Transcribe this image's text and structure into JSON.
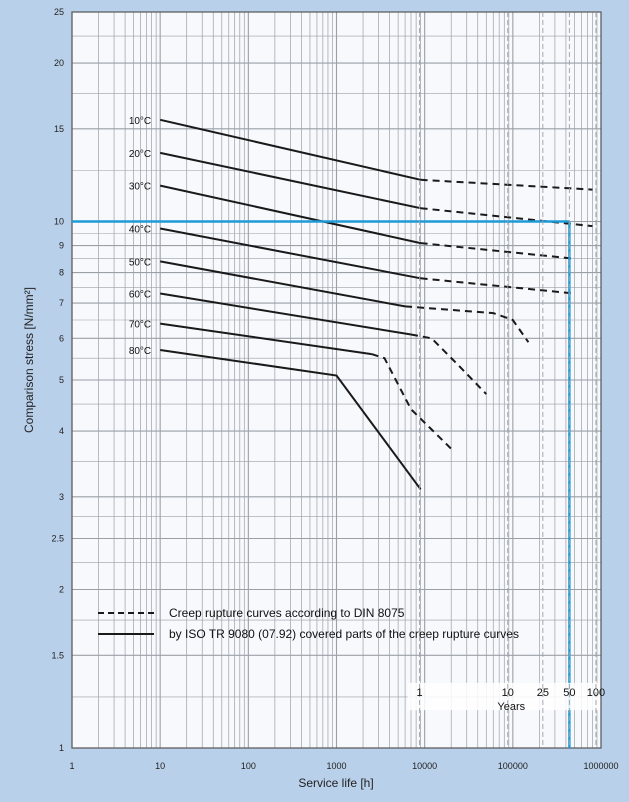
{
  "chart_data": {
    "type": "line",
    "xlabel": "Service life [h]",
    "ylabel": "Comparison stress [N/mm²]",
    "x_scale": "log",
    "y_scale": "log",
    "xlim": [
      1,
      1000000
    ],
    "ylim": [
      1,
      25
    ],
    "x_ticks": [
      1,
      10,
      100,
      1000,
      10000,
      100000,
      1000000
    ],
    "x_tick_labels": [
      "1",
      "10",
      "100",
      "1000",
      "10000",
      "100000",
      "1000000"
    ],
    "y_ticks": [
      1,
      1.5,
      2,
      2.5,
      3,
      4,
      5,
      6,
      7,
      8,
      9,
      10,
      15,
      20,
      25
    ],
    "y_tick_labels": [
      "1",
      "1.5",
      "2",
      "2.5",
      "3",
      "4",
      "5",
      "6",
      "7",
      "8",
      "9",
      "10",
      "15",
      "20",
      "25"
    ],
    "grid": true,
    "series": [
      {
        "name": "10°C",
        "solid": [
          [
            10,
            15.6
          ],
          [
            9000,
            12.0
          ]
        ],
        "dashed": [
          [
            9000,
            12.0
          ],
          [
            800000,
            11.5
          ]
        ]
      },
      {
        "name": "20°C",
        "solid": [
          [
            10,
            13.5
          ],
          [
            9000,
            10.6
          ]
        ],
        "dashed": [
          [
            9000,
            10.6
          ],
          [
            800000,
            9.8
          ]
        ]
      },
      {
        "name": "30°C",
        "solid": [
          [
            10,
            11.7
          ],
          [
            9000,
            9.1
          ]
        ],
        "dashed": [
          [
            9000,
            9.1
          ],
          [
            500000,
            8.5
          ]
        ]
      },
      {
        "name": "40°C",
        "solid": [
          [
            10,
            9.7
          ],
          [
            9000,
            7.8
          ]
        ],
        "dashed": [
          [
            9000,
            7.8
          ],
          [
            500000,
            7.3
          ]
        ]
      },
      {
        "name": "50°C",
        "solid": [
          [
            10,
            8.4
          ],
          [
            6000,
            6.9
          ]
        ],
        "dashed": [
          [
            6000,
            6.9
          ],
          [
            60000,
            6.7
          ],
          [
            100000,
            6.5
          ],
          [
            150000,
            5.9
          ]
        ]
      },
      {
        "name": "60°C",
        "solid": [
          [
            10,
            7.3
          ],
          [
            7000,
            6.1
          ]
        ],
        "dashed": [
          [
            7000,
            6.1
          ],
          [
            12000,
            6.0
          ],
          [
            25000,
            5.3
          ],
          [
            50000,
            4.7
          ]
        ]
      },
      {
        "name": "70°C",
        "solid": [
          [
            10,
            6.4
          ],
          [
            2500,
            5.6
          ]
        ],
        "dashed": [
          [
            2500,
            5.6
          ],
          [
            3500,
            5.5
          ],
          [
            7000,
            4.4
          ],
          [
            20000,
            3.7
          ]
        ]
      },
      {
        "name": "80°C",
        "solid": [
          [
            10,
            5.7
          ],
          [
            1000,
            5.1
          ],
          [
            9000,
            3.1
          ]
        ],
        "dashed": []
      }
    ],
    "reference_lines": {
      "stress": 10,
      "service_life_years": 50
    },
    "years_scale": {
      "label": "Years",
      "ticks": [
        "1",
        "10",
        "25",
        "50",
        "100"
      ],
      "hours": [
        8760,
        87600,
        219000,
        438000,
        876000
      ]
    },
    "legend": {
      "placement": "bottom-left",
      "entries": [
        {
          "style": "dashed",
          "label": "Creep rupture curves according to DIN 8075"
        },
        {
          "style": "solid",
          "label": "by ISO TR 9080 (07.92) covered parts of the creep rupture curves"
        }
      ]
    }
  },
  "colors": {
    "background": "#b9d0ea",
    "plot_background": "#f7f9fc",
    "grid": "#9aa0a8",
    "curve": "#1a1a1a",
    "reference": "#1e9ad6"
  }
}
